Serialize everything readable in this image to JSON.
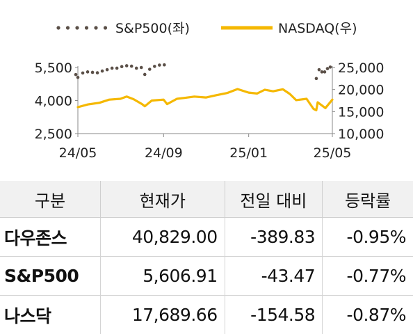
{
  "chart_data": {
    "type": "line",
    "x_ticks": [
      "24/05",
      "24/09",
      "25/01",
      "25/05"
    ],
    "y_left_ticks": [
      "5,500",
      "4,000",
      "2,500"
    ],
    "y_right_ticks": [
      "25,000",
      "20,000",
      "15,000",
      "10,000"
    ],
    "y_left_range": [
      2500,
      5500
    ],
    "y_right_range": [
      10000,
      25000
    ],
    "legend_position": "top",
    "series": [
      {
        "name": "S&P500(좌)",
        "axis": "left",
        "style": "dotted",
        "color": "#5a4f47",
        "x": [
          "2024-05-01",
          "2024-05-08",
          "2024-05-15",
          "2024-05-22",
          "2024-05-29",
          "2024-06-05",
          "2024-06-12",
          "2024-06-19",
          "2024-06-26",
          "2024-07-03",
          "2024-07-10",
          "2024-07-17",
          "2024-07-24",
          "2024-07-31",
          "2024-08-05",
          "2024-08-12",
          "2024-08-19",
          "2024-08-26",
          "2024-09-02",
          "2024-04-28",
          "2025-04-08",
          "2025-04-12",
          "2025-04-16",
          "2025-04-20",
          "2025-04-24",
          "2025-04-28"
        ],
        "values": [
          5050,
          5250,
          5300,
          5280,
          5260,
          5340,
          5400,
          5470,
          5470,
          5540,
          5580,
          5560,
          5470,
          5500,
          5186,
          5420,
          5550,
          5610,
          5620,
          5180,
          5000,
          5400,
          5300,
          5300,
          5450,
          5520
        ]
      },
      {
        "name": "NASDAQ(우)",
        "axis": "right",
        "style": "solid",
        "color": "#f5b800",
        "x": [
          "2024-05-01",
          "2024-05-15",
          "2024-06-01",
          "2024-06-15",
          "2024-07-01",
          "2024-07-10",
          "2024-07-20",
          "2024-08-01",
          "2024-08-05",
          "2024-08-15",
          "2024-09-01",
          "2024-09-06",
          "2024-09-20",
          "2024-10-01",
          "2024-10-15",
          "2024-11-01",
          "2024-11-15",
          "2024-12-01",
          "2024-12-16",
          "2025-01-01",
          "2025-01-13",
          "2025-01-24",
          "2025-02-05",
          "2025-02-19",
          "2025-03-01",
          "2025-03-10",
          "2025-03-25",
          "2025-04-04",
          "2025-04-08",
          "2025-04-10",
          "2025-04-21",
          "2025-05-01"
        ],
        "values": [
          16000,
          16600,
          17000,
          17700,
          17900,
          18400,
          17800,
          16700,
          16200,
          17500,
          17700,
          16700,
          17900,
          18100,
          18400,
          18200,
          18700,
          19200,
          20100,
          19300,
          19100,
          19950,
          19600,
          20050,
          19000,
          17600,
          17900,
          15600,
          15300,
          17100,
          15800,
          17700
        ]
      }
    ]
  },
  "table": {
    "headers": [
      "구분",
      "현재가",
      "전일 대비",
      "등락률"
    ],
    "rows": [
      [
        "다우존스",
        "40,829.00",
        "-389.83",
        "-0.95%"
      ],
      [
        "S&P500",
        "5,606.91",
        "-43.47",
        "-0.77%"
      ],
      [
        "나스닥",
        "17,689.66",
        "-154.58",
        "-0.87%"
      ]
    ]
  }
}
